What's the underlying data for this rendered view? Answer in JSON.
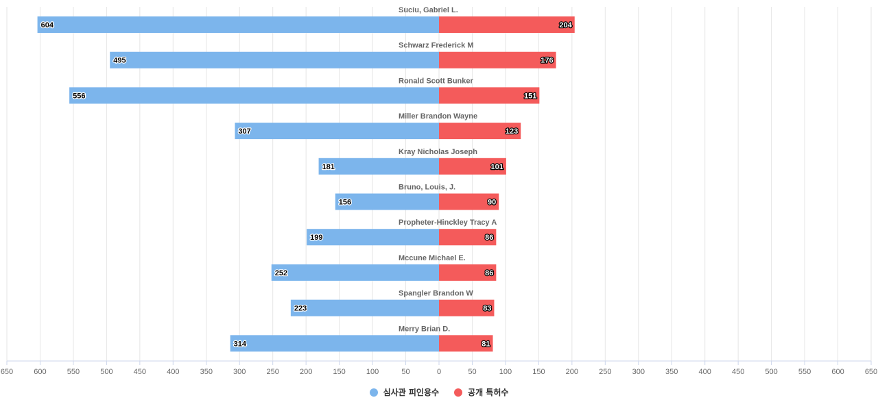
{
  "chart_data": {
    "type": "bar",
    "orientation": "horizontal-diverging",
    "categories": [
      "Suciu, Gabriel L.",
      "Schwarz Frederick M",
      "Ronald Scott Bunker",
      "Miller Brandon Wayne",
      "Kray Nicholas Joseph",
      "Bruno, Louis, J.",
      "Propheter-Hinckley Tracy A",
      "Mccune Michael E.",
      "Spangler Brandon W",
      "Merry Brian D."
    ],
    "series": [
      {
        "name": "심사관 피인용수",
        "color": "#7cb5ec",
        "side": "left",
        "values": [
          604,
          495,
          556,
          307,
          181,
          156,
          199,
          252,
          223,
          314
        ]
      },
      {
        "name": "공개 특허수",
        "color": "#f45b5b",
        "side": "right",
        "values": [
          204,
          176,
          151,
          123,
          101,
          90,
          86,
          86,
          83,
          81
        ]
      }
    ],
    "xlim": [
      -650,
      650
    ],
    "xticks": [
      650,
      600,
      550,
      500,
      450,
      400,
      350,
      300,
      250,
      200,
      150,
      100,
      50,
      0,
      50,
      100,
      150,
      200,
      250,
      300,
      350,
      400,
      450,
      500,
      550,
      600,
      650
    ],
    "grid": true,
    "legend_position": "bottom-center"
  }
}
